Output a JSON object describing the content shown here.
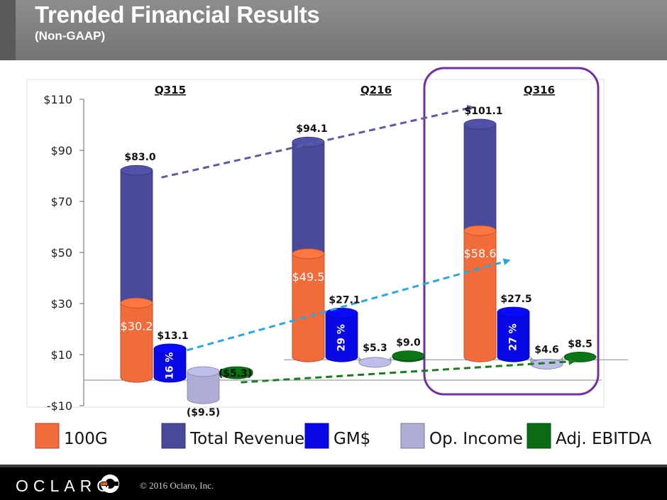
{
  "header": {
    "title": "Trended Financial Results",
    "subtitle": "(Non-GAAP)"
  },
  "footer": {
    "logo_text": "OCLARO",
    "copyright": "© 2016 Oclaro, Inc."
  },
  "chart_data": {
    "type": "bar",
    "title": "",
    "xlabel": "",
    "ylabel": "",
    "ylim": [
      -10,
      110
    ],
    "y_ticks": [
      "$110",
      "$90",
      "$70",
      "$50",
      "$30",
      "$10",
      "-$10"
    ],
    "y_tick_values": [
      110,
      90,
      70,
      50,
      30,
      10,
      -10
    ],
    "categories": [
      "Q315",
      "Q216",
      "Q316"
    ],
    "highlighted_category": "Q316",
    "legend_position": "bottom",
    "series": [
      {
        "name": "Total Revenue",
        "color": "#4a4a9a",
        "values": [
          83.0,
          94.1,
          101.1
        ],
        "labels": [
          "$83.0",
          "$94.1",
          "$101.1"
        ]
      },
      {
        "name": "100G",
        "color": "#f26b3a",
        "values": [
          30.2,
          49.5,
          58.6
        ],
        "labels": [
          "$30.2",
          "$49.5",
          "$58.6"
        ]
      },
      {
        "name": "GM$",
        "color": "#0808e6",
        "values": [
          13.1,
          27.1,
          27.5
        ],
        "labels": [
          "$13.1",
          "$27.1",
          "$27.5"
        ],
        "inner_labels": [
          "16 %",
          "29 %",
          "27 %"
        ]
      },
      {
        "name": "Op. Income",
        "color": "#adadd6",
        "values": [
          -9.5,
          5.3,
          4.6
        ],
        "labels": [
          "($9.5)",
          "$5.3",
          "$4.6"
        ]
      },
      {
        "name": "Adj. EBITDA",
        "color": "#0a6b14",
        "values": [
          -5.3,
          9.0,
          8.5
        ],
        "labels": [
          "($5.3)",
          "$9.0",
          "$8.5"
        ]
      }
    ],
    "legend": [
      "100G",
      "Total Revenue",
      "GM$",
      "Op. Income",
      "Adj. EBITDA"
    ]
  }
}
